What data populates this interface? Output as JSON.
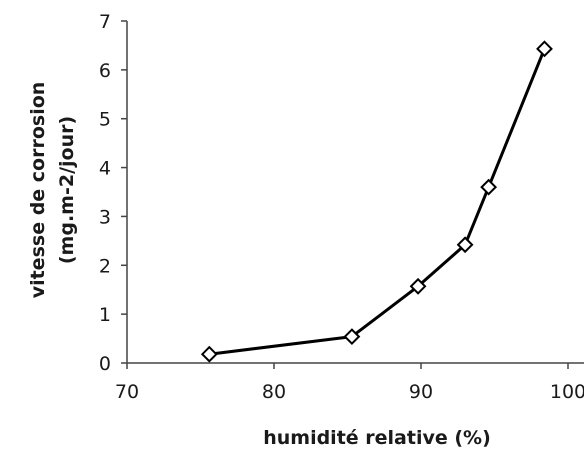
{
  "chart_data": {
    "type": "scatter",
    "xlabel": "humidité relative (%)",
    "ylabel_lines": [
      "vitesse de corrosion",
      "(mg.m-2/jour)"
    ],
    "xlim": [
      70,
      100
    ],
    "ylim": [
      0,
      7
    ],
    "xticks": [
      70,
      80,
      90,
      100
    ],
    "yticks": [
      0,
      1,
      2,
      3,
      4,
      5,
      6,
      7
    ],
    "grid": false,
    "legend": "none",
    "series": [
      {
        "marker": "diamond-open",
        "line": true,
        "color": "#000000",
        "points": [
          {
            "x": 75.6,
            "y": 0.18
          },
          {
            "x": 85.3,
            "y": 0.54
          },
          {
            "x": 89.8,
            "y": 1.57
          },
          {
            "x": 93.0,
            "y": 2.42
          },
          {
            "x": 94.6,
            "y": 3.6
          },
          {
            "x": 98.4,
            "y": 6.43
          }
        ]
      }
    ]
  }
}
